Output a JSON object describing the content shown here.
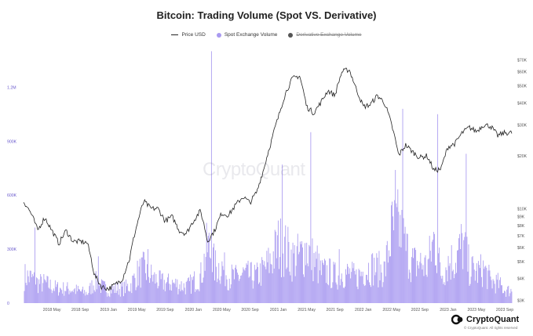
{
  "header": {
    "title": "Bitcoin: Trading Volume (Spot VS. Derivative)"
  },
  "legend": [
    {
      "label": "Price USD",
      "color": "#222222",
      "hidden": false,
      "swatch": "line"
    },
    {
      "label": "Spot Exchange Volume",
      "color": "#a99af0",
      "hidden": false,
      "swatch": "dot"
    },
    {
      "label": "Derivative Exchange Volume",
      "color": "#555555",
      "hidden": true,
      "swatch": "dot"
    }
  ],
  "watermark": "CryptoQuant",
  "brand": {
    "name": "CryptoQuant",
    "sub": "© CryptoQuant. All rights reserved"
  },
  "chart_data": {
    "type": "bar+line",
    "x_tick_labels": [
      "2018 May",
      "2018 Sep",
      "2019 Jan",
      "2019 May",
      "2019 Sep",
      "2020 Jan",
      "2020 May",
      "2020 Sep",
      "2021 Jan",
      "2021 May",
      "2021 Sep",
      "2022 Jan",
      "2022 May",
      "2022 Sep",
      "2023 Jan",
      "2023 May",
      "2023 Sep"
    ],
    "left_axis": {
      "ticks": [
        "0",
        "300K",
        "600K",
        "900K",
        "1.2M"
      ],
      "values": [
        0,
        300000,
        600000,
        900000,
        1200000
      ],
      "ylim": [
        0,
        1380000
      ],
      "color": "#6a5acd"
    },
    "right_axis": {
      "scale": "log",
      "ticks": [
        "$3K",
        "$4K",
        "$5K",
        "$6K",
        "$7K",
        "$8K",
        "$9K",
        "$10K",
        "$20K",
        "$30K",
        "$40K",
        "$50K",
        "$60K",
        "$70K"
      ],
      "values": [
        3000,
        4000,
        5000,
        6000,
        7000,
        8000,
        9000,
        10000,
        20000,
        30000,
        40000,
        50000,
        60000,
        70000
      ],
      "ylim": [
        2900,
        75000
      ]
    },
    "x_range_months": [
      "2018-01",
      "2023-10"
    ],
    "series": [
      {
        "name": "Price USD",
        "type": "line",
        "axis": "right",
        "unit": "USD",
        "x": [
          "2018-01",
          "2018-02",
          "2018-03",
          "2018-04",
          "2018-05",
          "2018-06",
          "2018-07",
          "2018-08",
          "2018-09",
          "2018-10",
          "2018-11",
          "2018-12",
          "2019-01",
          "2019-02",
          "2019-03",
          "2019-04",
          "2019-05",
          "2019-06",
          "2019-07",
          "2019-08",
          "2019-09",
          "2019-10",
          "2019-11",
          "2019-12",
          "2020-01",
          "2020-02",
          "2020-03",
          "2020-04",
          "2020-05",
          "2020-06",
          "2020-07",
          "2020-08",
          "2020-09",
          "2020-10",
          "2020-11",
          "2020-12",
          "2021-01",
          "2021-02",
          "2021-03",
          "2021-04",
          "2021-05",
          "2021-06",
          "2021-07",
          "2021-08",
          "2021-09",
          "2021-10",
          "2021-11",
          "2021-12",
          "2022-01",
          "2022-02",
          "2022-03",
          "2022-04",
          "2022-05",
          "2022-06",
          "2022-07",
          "2022-08",
          "2022-09",
          "2022-10",
          "2022-11",
          "2022-12",
          "2023-01",
          "2023-02",
          "2023-03",
          "2023-04",
          "2023-05",
          "2023-06",
          "2023-07",
          "2023-08",
          "2023-09"
        ],
        "values": [
          11000,
          9500,
          7500,
          8900,
          7500,
          6300,
          7500,
          6500,
          6500,
          6400,
          4200,
          3600,
          3500,
          3700,
          4000,
          5200,
          8000,
          11000,
          10000,
          10000,
          8500,
          9000,
          7500,
          7200,
          8500,
          9700,
          6500,
          7500,
          9400,
          9200,
          10500,
          11700,
          10800,
          12500,
          17000,
          24000,
          33000,
          45000,
          55000,
          57000,
          38000,
          35000,
          40000,
          47000,
          44000,
          60000,
          62000,
          48000,
          38000,
          39000,
          44000,
          40000,
          30000,
          20000,
          23000,
          21000,
          19500,
          20000,
          16500,
          16800,
          22500,
          23500,
          27000,
          29000,
          27500,
          30000,
          29500,
          26000,
          27000
        ]
      },
      {
        "name": "Spot Exchange Volume",
        "type": "bar",
        "axis": "left",
        "unit": "BTC",
        "x": [
          "2018-01",
          "2018-02",
          "2018-03",
          "2018-04",
          "2018-05",
          "2018-06",
          "2018-07",
          "2018-08",
          "2018-09",
          "2018-10",
          "2018-11",
          "2018-12",
          "2019-01",
          "2019-02",
          "2019-03",
          "2019-04",
          "2019-05",
          "2019-06",
          "2019-07",
          "2019-08",
          "2019-09",
          "2019-10",
          "2019-11",
          "2019-12",
          "2020-01",
          "2020-02",
          "2020-03",
          "2020-04",
          "2020-05",
          "2020-06",
          "2020-07",
          "2020-08",
          "2020-09",
          "2020-10",
          "2020-11",
          "2020-12",
          "2021-01",
          "2021-02",
          "2021-03",
          "2021-04",
          "2021-05",
          "2021-06",
          "2021-07",
          "2021-08",
          "2021-09",
          "2021-10",
          "2021-11",
          "2021-12",
          "2022-01",
          "2022-02",
          "2022-03",
          "2022-04",
          "2022-05",
          "2022-06",
          "2022-07",
          "2022-08",
          "2022-09",
          "2022-10",
          "2022-11",
          "2022-12",
          "2023-01",
          "2023-02",
          "2023-03",
          "2023-04",
          "2023-05",
          "2023-06",
          "2023-07",
          "2023-08",
          "2023-09"
        ],
        "values": [
          150000,
          140000,
          110000,
          110000,
          90000,
          80000,
          80000,
          75000,
          65000,
          55000,
          120000,
          90000,
          75000,
          80000,
          80000,
          95000,
          160000,
          190000,
          150000,
          120000,
          110000,
          110000,
          100000,
          90000,
          120000,
          150000,
          320000,
          200000,
          200000,
          150000,
          140000,
          160000,
          150000,
          150000,
          190000,
          240000,
          330000,
          300000,
          250000,
          260000,
          310000,
          230000,
          170000,
          170000,
          150000,
          170000,
          160000,
          140000,
          180000,
          200000,
          190000,
          180000,
          400000,
          420000,
          300000,
          220000,
          220000,
          200000,
          360000,
          160000,
          230000,
          240000,
          330000,
          190000,
          170000,
          190000,
          120000,
          110000,
          70000
        ],
        "peaks": [
          {
            "x": "2020-03",
            "value": 1400000
          },
          {
            "x": "2022-06",
            "value": 1080000
          },
          {
            "x": "2022-11",
            "value": 1050000
          },
          {
            "x": "2021-05",
            "value": 950000
          },
          {
            "x": "2023-03",
            "value": 830000
          },
          {
            "x": "2021-01",
            "value": 770000
          },
          {
            "x": "2022-05",
            "value": 740000
          },
          {
            "x": "2018-02",
            "value": 420000
          },
          {
            "x": "2019-06",
            "value": 300000
          },
          {
            "x": "2018-11",
            "value": 260000
          },
          {
            "x": "2021-06",
            "value": 320000
          },
          {
            "x": "2021-09",
            "value": 300000
          }
        ]
      },
      {
        "name": "Derivative Exchange Volume",
        "type": "bar",
        "axis": "left",
        "hidden": true,
        "values": []
      }
    ],
    "grid": false,
    "legend_position": "top-center"
  }
}
